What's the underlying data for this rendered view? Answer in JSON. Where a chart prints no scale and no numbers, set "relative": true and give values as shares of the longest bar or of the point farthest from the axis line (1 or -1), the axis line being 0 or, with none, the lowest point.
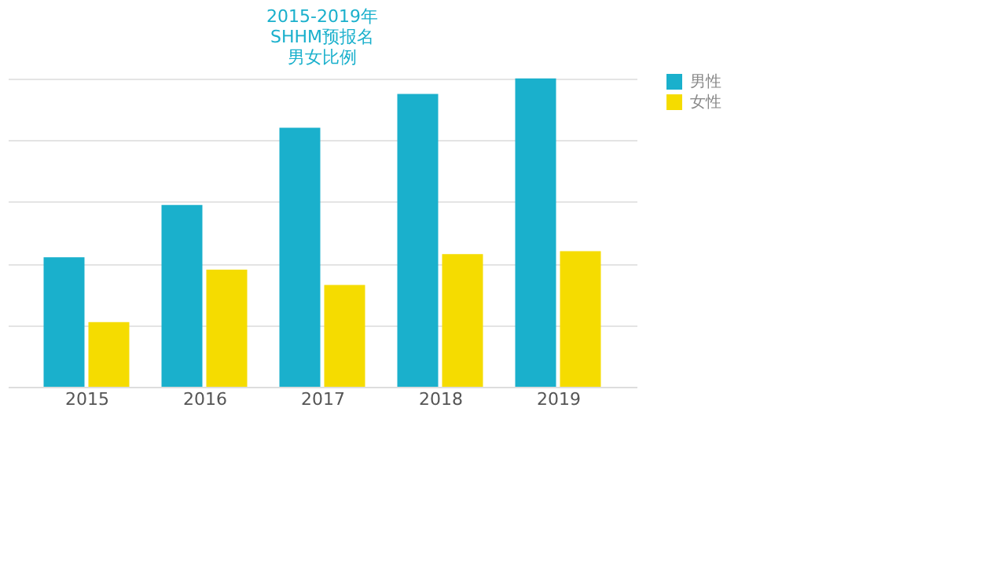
{
  "chart_data": {
    "type": "bar",
    "title": "2015-2019年SHHM预报名男女比例",
    "categories": [
      "2015",
      "2016",
      "2017",
      "2018",
      "2019"
    ],
    "relative": true,
    "grid": "y",
    "legend": "right",
    "series": [
      {
        "name": "男性",
        "color": "#1ab0cc",
        "values": [
          0.42,
          0.59,
          0.84,
          0.95,
          1
        ]
      },
      {
        "name": "女性",
        "color": "#f5dc00",
        "values": [
          0.21,
          0.38,
          0.33,
          0.43,
          0.44
        ]
      }
    ]
  }
}
